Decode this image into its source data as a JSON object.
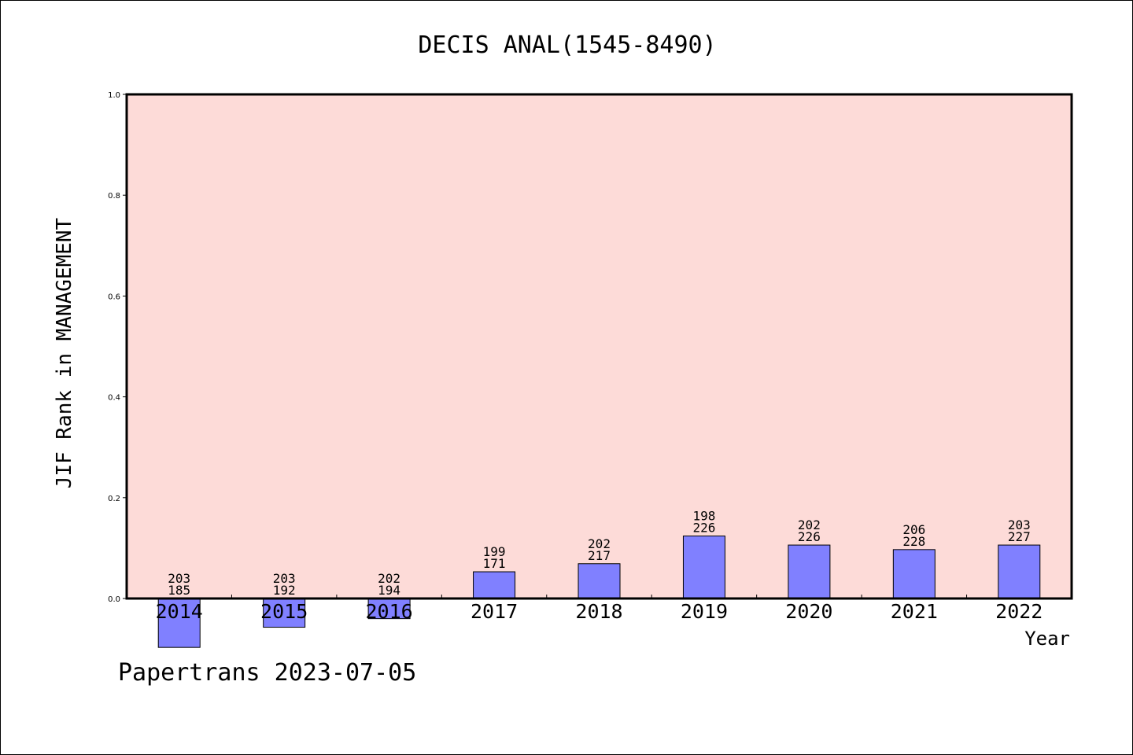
{
  "footer": "Papertrans 2023-07-05",
  "chart_data": {
    "type": "bar",
    "title": "DECIS ANAL(1545-8490)",
    "xlabel": "Year",
    "ylabel": "JIF Rank in MANAGEMENT",
    "ylim": [
      0,
      1.0
    ],
    "yticks": [
      "0.0",
      "0.2",
      "0.4",
      "0.6",
      "0.8",
      "1.0"
    ],
    "grid": false,
    "categories": [
      "2014",
      "2015",
      "2016",
      "2017",
      "2018",
      "2019",
      "2020",
      "2021",
      "2022"
    ],
    "values": [
      -0.097,
      -0.057,
      -0.04,
      0.053,
      0.069,
      0.124,
      0.106,
      0.097,
      0.106
    ],
    "labels_top": [
      "203",
      "203",
      "202",
      "199",
      "202",
      "198",
      "202",
      "206",
      "203"
    ],
    "labels_bottom": [
      "185",
      "192",
      "194",
      "171",
      "217",
      "226",
      "226",
      "228",
      "227"
    ],
    "colors": {
      "plot_bg": "#fddbd8",
      "bar": "#8080ff"
    }
  }
}
